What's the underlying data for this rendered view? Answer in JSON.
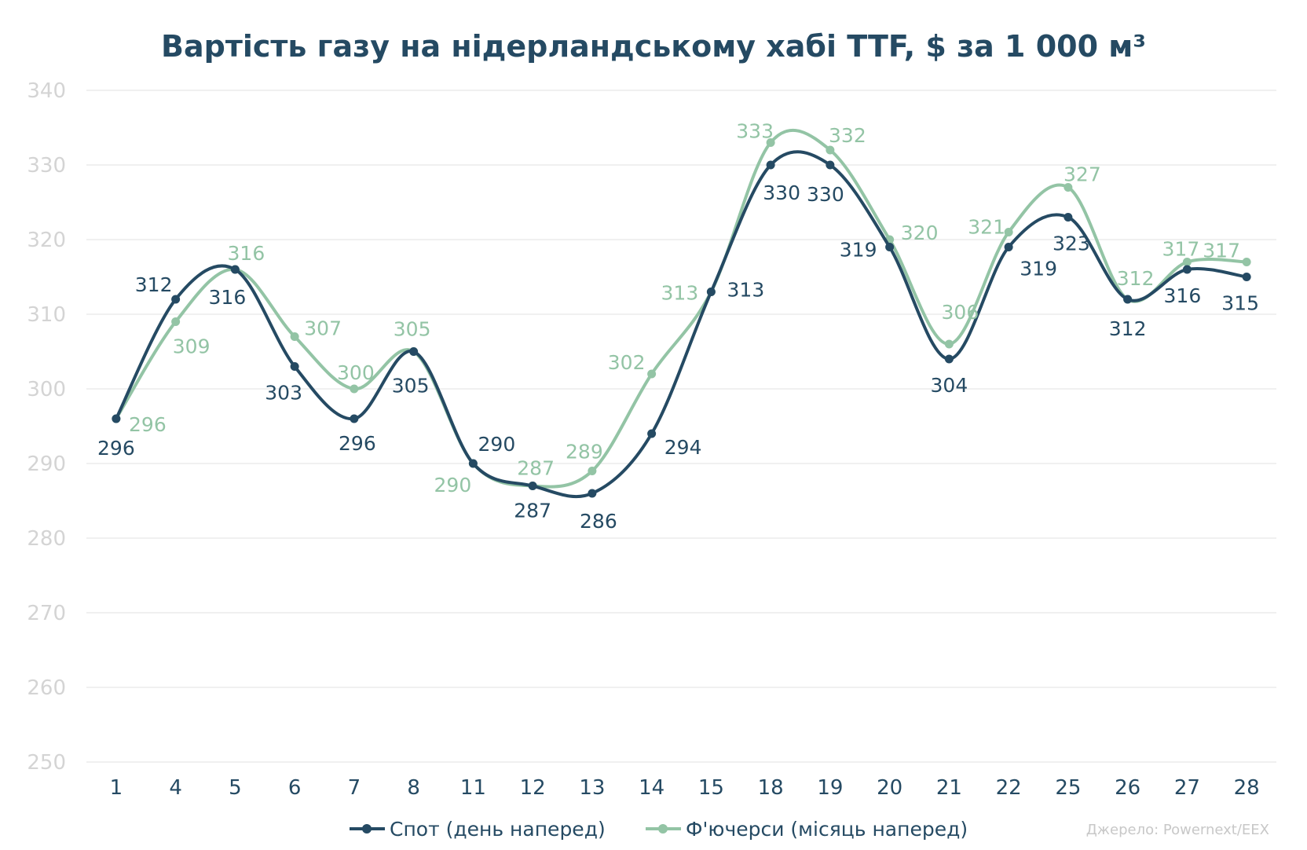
{
  "chart_data": {
    "type": "line",
    "title": "Вартість газу на нідерландському хабі TTF, $ за 1 000 м³",
    "categories": [
      "1",
      "4",
      "5",
      "6",
      "7",
      "8",
      "11",
      "12",
      "13",
      "14",
      "15",
      "18",
      "19",
      "20",
      "21",
      "22",
      "25",
      "26",
      "27",
      "28"
    ],
    "ylim": [
      250,
      340
    ],
    "yticks": [
      "250",
      "260",
      "270",
      "280",
      "290",
      "300",
      "310",
      "320",
      "330",
      "340"
    ],
    "grid": true,
    "legend_position": "bottom",
    "series": [
      {
        "name": "Спот (день наперед)",
        "color": "#254a63",
        "values": [
          296,
          312,
          316,
          303,
          296,
          305,
          290,
          287,
          286,
          294,
          313,
          330,
          330,
          319,
          304,
          319,
          323,
          312,
          316,
          315
        ],
        "labels": [
          "296",
          "312",
          "316",
          "303",
          "296",
          "305",
          "290",
          "287",
          "286",
          "294",
          "313",
          "330",
          "330",
          "319",
          "304",
          "319",
          "323",
          "312",
          "316",
          "315"
        ]
      },
      {
        "name": "Ф'ючерси (місяць наперед)",
        "color": "#93c4a5",
        "values": [
          296,
          309,
          316,
          307,
          300,
          305,
          290,
          287,
          289,
          302,
          313,
          333,
          332,
          320,
          306,
          321,
          327,
          312,
          317,
          317
        ],
        "labels": [
          "296",
          "309",
          "316",
          "307",
          "300",
          "305",
          "290",
          "287",
          "289",
          "302",
          "313",
          "333",
          "332",
          "320",
          "306",
          "321",
          "327",
          "312",
          "317",
          "317"
        ]
      }
    ]
  },
  "source_text": "Джерело: Powernext/EEX"
}
